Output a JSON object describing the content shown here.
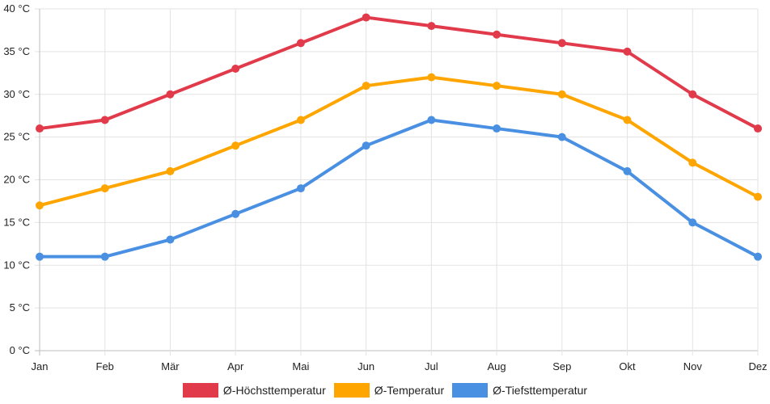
{
  "chart_data": {
    "type": "line",
    "categories": [
      "Jan",
      "Feb",
      "Mär",
      "Apr",
      "Mai",
      "Jun",
      "Jul",
      "Aug",
      "Sep",
      "Okt",
      "Nov",
      "Dez"
    ],
    "ylim": [
      0,
      40
    ],
    "yticks": [
      0,
      5,
      10,
      15,
      20,
      25,
      30,
      35,
      40
    ],
    "y_unit": "°C",
    "grid": true,
    "legend_position": "bottom",
    "series": [
      {
        "name": "Ø-Höchsttemperatur",
        "color": "#e13a4a",
        "values": [
          26,
          27,
          30,
          33,
          36,
          39,
          38,
          37,
          36,
          35,
          30,
          26
        ]
      },
      {
        "name": "Ø-Temperatur",
        "color": "#ffa500",
        "values": [
          17,
          19,
          21,
          24,
          27,
          31,
          32,
          31,
          30,
          27,
          22,
          18
        ]
      },
      {
        "name": "Ø-Tiefsttemperatur",
        "color": "#4a90e2",
        "values": [
          11,
          11,
          13,
          16,
          19,
          24,
          27,
          26,
          25,
          21,
          15,
          11
        ]
      }
    ]
  }
}
